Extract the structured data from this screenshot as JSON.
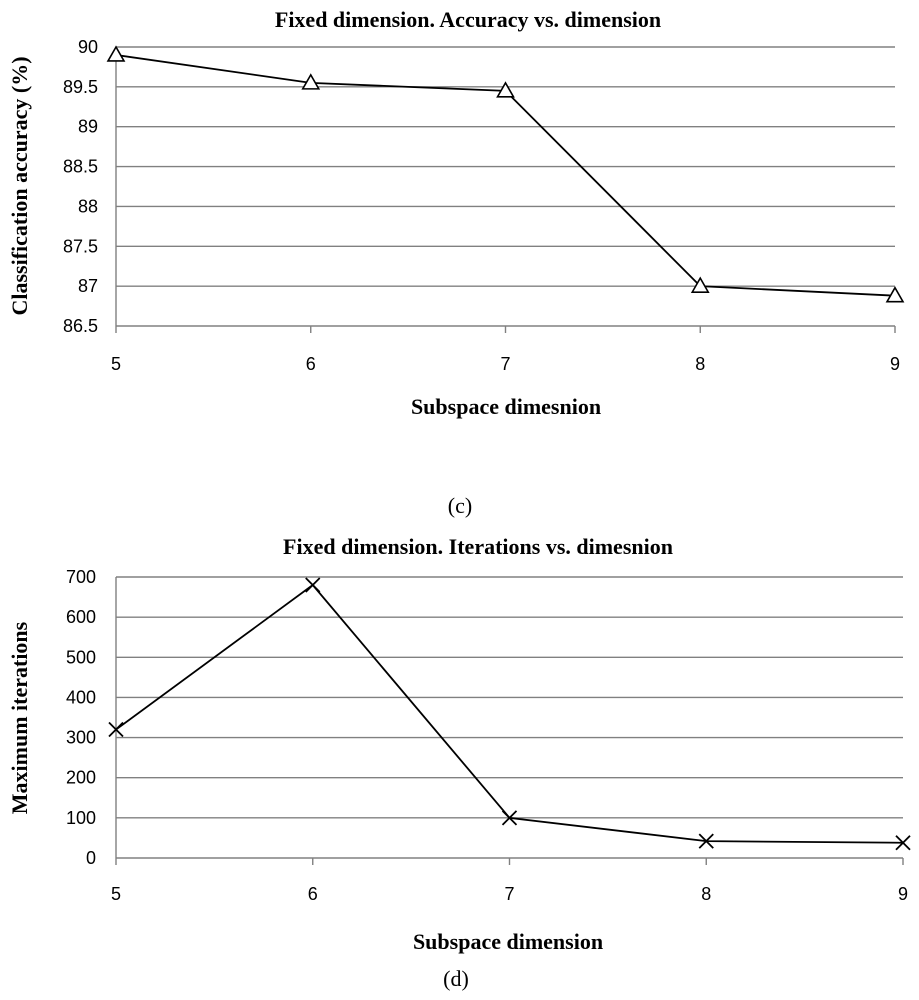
{
  "chart_data": [
    {
      "type": "line",
      "title": "Fixed dimension.  Accuracy vs. dimension",
      "xlabel": "Subspace dimesnion",
      "ylabel": "Classification accuracy (%)",
      "caption": "(c)",
      "marker": "triangle",
      "x": [
        5,
        6,
        7,
        8,
        9
      ],
      "y_ticks": [
        "86.5",
        "87",
        "87.5",
        "88",
        "88.5",
        "89",
        "89.5",
        "90"
      ],
      "ylim": [
        86.5,
        90
      ],
      "series": [
        {
          "name": "accuracy",
          "values": [
            89.9,
            89.55,
            89.45,
            87.0,
            86.88
          ]
        }
      ]
    },
    {
      "type": "line",
      "title": "Fixed dimension.  Iterations  vs. dimesnion",
      "xlabel": "Subspace dimension",
      "ylabel": "Maximum iterations",
      "caption": "(d)",
      "marker": "x",
      "x": [
        5,
        6,
        7,
        8,
        9
      ],
      "y_ticks": [
        "0",
        "100",
        "200",
        "300",
        "400",
        "500",
        "600",
        "700"
      ],
      "ylim": [
        0,
        700
      ],
      "series": [
        {
          "name": "iterations",
          "values": [
            320,
            680,
            100,
            42,
            38
          ]
        }
      ]
    }
  ]
}
